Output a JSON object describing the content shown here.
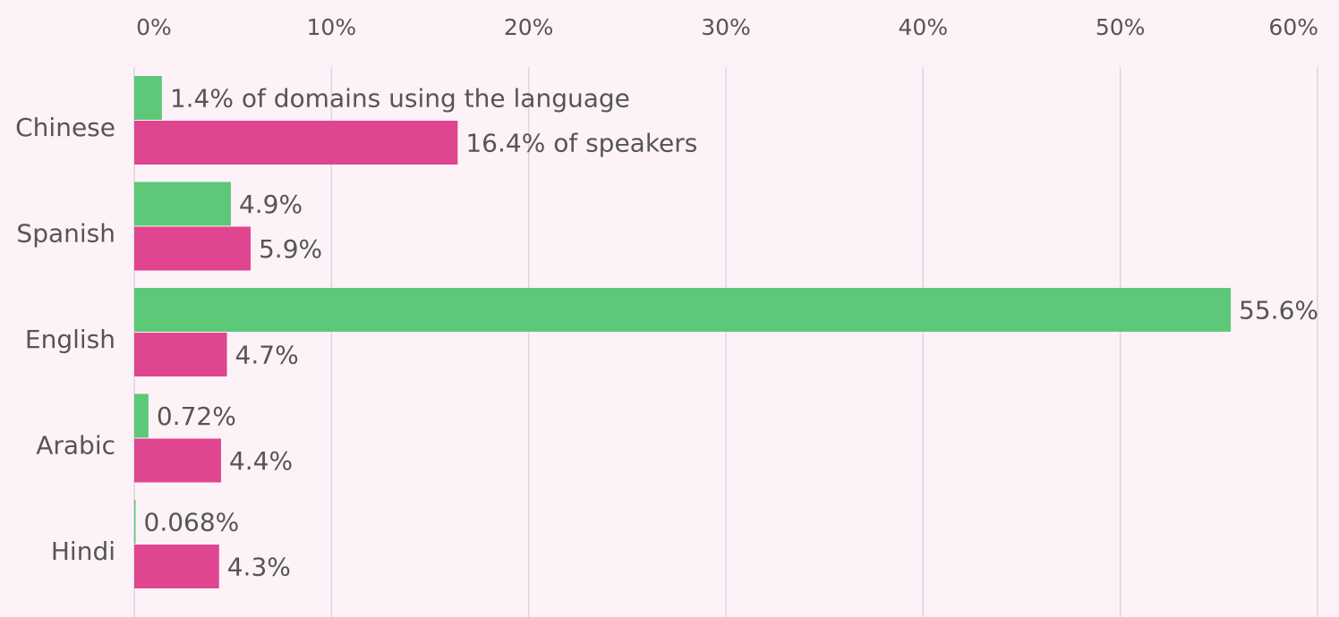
{
  "chart_data": {
    "type": "bar",
    "orientation": "horizontal",
    "categories": [
      "Chinese",
      "Spanish",
      "English",
      "Arabic",
      "Hindi"
    ],
    "series": [
      {
        "key": "domains",
        "color": "#5cc878",
        "values": [
          1.4,
          4.9,
          55.6,
          0.72,
          0.068
        ],
        "labels": [
          "1.4% of domains using the language",
          "4.9%",
          "55.6%",
          "0.72%",
          "0.068%"
        ]
      },
      {
        "key": "speakers",
        "color": "#e0458f",
        "values": [
          16.4,
          5.9,
          4.7,
          4.4,
          4.3
        ],
        "labels": [
          "16.4% of speakers",
          "5.9%",
          "4.7%",
          "4.4%",
          "4.3%"
        ]
      }
    ],
    "xlim": [
      0,
      60
    ],
    "x_ticks": [
      0,
      10,
      20,
      30,
      40,
      50,
      60
    ],
    "x_tick_labels": [
      "0%",
      "10%",
      "20%",
      "30%",
      "40%",
      "50%",
      "60%"
    ],
    "x_axis_position": "top",
    "grid": true,
    "background": "#fdf2f8",
    "gridline_color": "#dcd6dc",
    "text_color": "#555555"
  }
}
